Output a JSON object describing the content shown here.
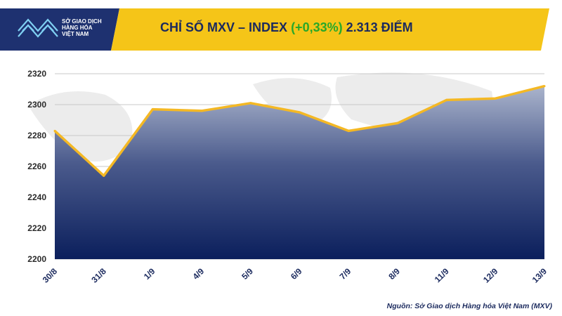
{
  "header": {
    "title_prefix": "CHỈ SỐ MXV – INDEX",
    "title_change": "(+0,33%)",
    "title_value": "2.313 ĐIỂM"
  },
  "logo": {
    "line1": "SỞ GIAO DỊCH",
    "line2": "HÀNG HÓA",
    "line3": "VIỆT NAM"
  },
  "source": "Nguồn: Sở Giao dịch Hàng hóa Việt Nam (MXV)",
  "colors": {
    "banner": "#f5c518",
    "title": "#1b2a5e",
    "change": "#29a829",
    "line": "#f4b824",
    "area_top": "#aab4cc",
    "area_bottom": "#0b1f5c"
  },
  "chart_data": {
    "type": "area",
    "categories": [
      "30/8",
      "31/8",
      "1/9",
      "4/9",
      "5/9",
      "6/9",
      "7/9",
      "8/9",
      "11/9",
      "12/9",
      "13/9"
    ],
    "values": [
      2283,
      2254,
      2297,
      2296,
      2301,
      2295,
      2283,
      2288,
      2303,
      2304,
      2312
    ],
    "ylim": [
      2200,
      2320
    ],
    "yticks": [
      2200,
      2220,
      2240,
      2260,
      2280,
      2300,
      2320
    ],
    "grid": true
  }
}
